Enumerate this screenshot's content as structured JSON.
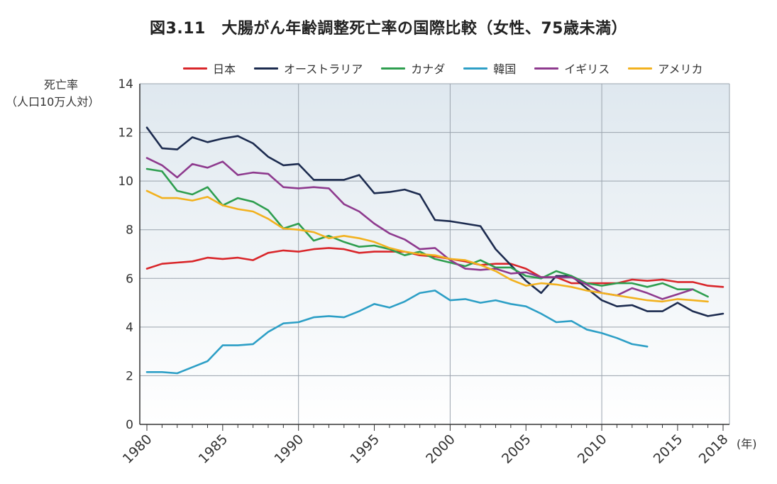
{
  "title": "図3.11　大腸がん年齢調整死亡率の国際比較（女性、75歳未満）",
  "ylabel_line1": "死亡率",
  "ylabel_line2": "（人口10万人対）",
  "xunit": "(年)",
  "colors": {
    "japan": "#d9262a",
    "australia": "#1c2b4f",
    "canada": "#2e9e4f",
    "korea": "#2d9fc6",
    "uk": "#8e3a8e",
    "usa": "#f2b11e",
    "grid": "#9aa3ad",
    "axis": "#333333"
  },
  "chart_data": {
    "type": "line",
    "xlim": [
      1980,
      2018
    ],
    "ylim": [
      0,
      14
    ],
    "yticks": [
      0,
      2,
      4,
      6,
      8,
      10,
      12,
      14
    ],
    "xtick_labels": [
      "1980",
      "1985",
      "1990",
      "1995",
      "2000",
      "2005",
      "2010",
      "2015",
      "2018"
    ],
    "xticks": [
      1980,
      1985,
      1990,
      1995,
      2000,
      2005,
      2010,
      2015,
      2018
    ],
    "legend_position": "top",
    "grid": true,
    "series": [
      {
        "name": "日本",
        "color_key": "japan",
        "start": 1980,
        "values": [
          6.4,
          6.6,
          6.65,
          6.7,
          6.85,
          6.8,
          6.85,
          6.75,
          7.05,
          7.15,
          7.1,
          7.2,
          7.25,
          7.2,
          7.05,
          7.1,
          7.1,
          7.1,
          6.95,
          6.9,
          6.8,
          6.7,
          6.55,
          6.6,
          6.6,
          6.4,
          6.05,
          6.05,
          5.8,
          5.8,
          5.8,
          5.8,
          5.95,
          5.9,
          5.95,
          5.85,
          5.85,
          5.7,
          5.65
        ]
      },
      {
        "name": "オーストラリア",
        "color_key": "australia",
        "start": 1980,
        "values": [
          12.2,
          11.35,
          11.3,
          11.8,
          11.6,
          11.75,
          11.85,
          11.55,
          11.0,
          10.65,
          10.7,
          10.05,
          10.05,
          10.05,
          10.25,
          9.5,
          9.55,
          9.65,
          9.45,
          8.4,
          8.35,
          8.25,
          8.15,
          7.2,
          6.55,
          5.9,
          5.4,
          6.1,
          6.1,
          5.6,
          5.1,
          4.85,
          4.9,
          4.65,
          4.65,
          5.0,
          4.65,
          4.45,
          4.55
        ]
      },
      {
        "name": "カナダ",
        "color_key": "canada",
        "start": 1980,
        "values": [
          10.5,
          10.4,
          9.6,
          9.45,
          9.75,
          9.0,
          9.3,
          9.15,
          8.8,
          8.05,
          8.25,
          7.55,
          7.75,
          7.5,
          7.3,
          7.35,
          7.2,
          6.95,
          7.1,
          6.8,
          6.65,
          6.5,
          6.75,
          6.45,
          6.45,
          6.1,
          6.0,
          6.3,
          6.1,
          5.8,
          5.7,
          5.8,
          5.8,
          5.65,
          5.8,
          5.55,
          5.55,
          5.25
        ]
      },
      {
        "name": "韓国",
        "color_key": "korea",
        "start": 1980,
        "values": [
          2.15,
          2.15,
          2.1,
          2.35,
          2.6,
          3.25,
          3.25,
          3.3,
          3.8,
          4.15,
          4.2,
          4.4,
          4.45,
          4.4,
          4.65,
          4.95,
          4.8,
          5.05,
          5.4,
          5.5,
          5.1,
          5.15,
          5.0,
          5.1,
          4.95,
          4.85,
          4.55,
          4.2,
          4.25,
          3.9,
          3.75,
          3.55,
          3.3,
          3.2
        ]
      },
      {
        "name": "イギリス",
        "color_key": "uk",
        "start": 1980,
        "values": [
          10.95,
          10.65,
          10.15,
          10.7,
          10.55,
          10.8,
          10.25,
          10.35,
          10.3,
          9.75,
          9.7,
          9.75,
          9.7,
          9.05,
          8.75,
          8.25,
          7.85,
          7.6,
          7.2,
          7.25,
          6.75,
          6.4,
          6.35,
          6.4,
          6.2,
          6.25,
          6.05,
          6.05,
          6.05,
          5.75,
          5.4,
          5.3,
          5.6,
          5.4,
          5.15,
          5.35,
          5.55
        ]
      },
      {
        "name": "アメリカ",
        "color_key": "usa",
        "start": 1980,
        "values": [
          9.6,
          9.3,
          9.3,
          9.2,
          9.35,
          9.0,
          8.85,
          8.75,
          8.45,
          8.05,
          8.0,
          7.9,
          7.65,
          7.75,
          7.65,
          7.5,
          7.25,
          7.1,
          7.0,
          6.95,
          6.8,
          6.75,
          6.55,
          6.3,
          5.95,
          5.7,
          5.8,
          5.75,
          5.65,
          5.5,
          5.4,
          5.3,
          5.2,
          5.1,
          5.05,
          5.15,
          5.1,
          5.05
        ]
      }
    ]
  }
}
